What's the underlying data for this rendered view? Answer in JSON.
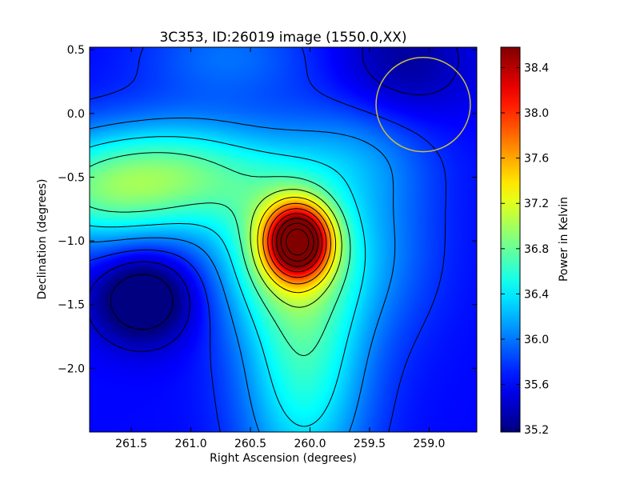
{
  "chart_data": {
    "type": "heatmap",
    "title": "3C353, ID:26019 image (1550.0,XX)",
    "xlabel": "Right Ascension (degrees)",
    "ylabel": "Declination (degrees)",
    "xlim": [
      261.85,
      258.6
    ],
    "ylim": [
      -2.5,
      0.52
    ],
    "x_reversed": true,
    "xticks": [
      261.5,
      261.0,
      260.5,
      260.0,
      259.5,
      259.0
    ],
    "xtick_labels": [
      "261.5",
      "261.0",
      "260.5",
      "260.0",
      "259.5",
      "259.0"
    ],
    "yticks": [
      0.5,
      0.0,
      -0.5,
      -1.0,
      -1.5,
      -2.0
    ],
    "ytick_labels": [
      "0.5",
      "0.0",
      "−0.5",
      "−1.0",
      "−1.5",
      "−2.0"
    ],
    "colormap": "jet",
    "colorbar": {
      "label": "Power in Kelvin",
      "range": [
        35.18,
        38.58
      ],
      "ticks": [
        35.2,
        35.6,
        36.0,
        36.4,
        36.8,
        37.2,
        37.6,
        38.0,
        38.4
      ],
      "tick_labels": [
        "35.2",
        "35.6",
        "36.0",
        "36.4",
        "36.8",
        "37.2",
        "37.6",
        "38.0",
        "38.4"
      ]
    },
    "peak": {
      "ra": 260.1,
      "dec": -1.0,
      "value": 38.55
    },
    "background_level": 35.2,
    "contours": {
      "count": 14,
      "color": "#000000"
    },
    "beam_circle": {
      "ra": 259.05,
      "dec": 0.07,
      "radius_deg": 0.37,
      "color": "#c8c040"
    }
  }
}
